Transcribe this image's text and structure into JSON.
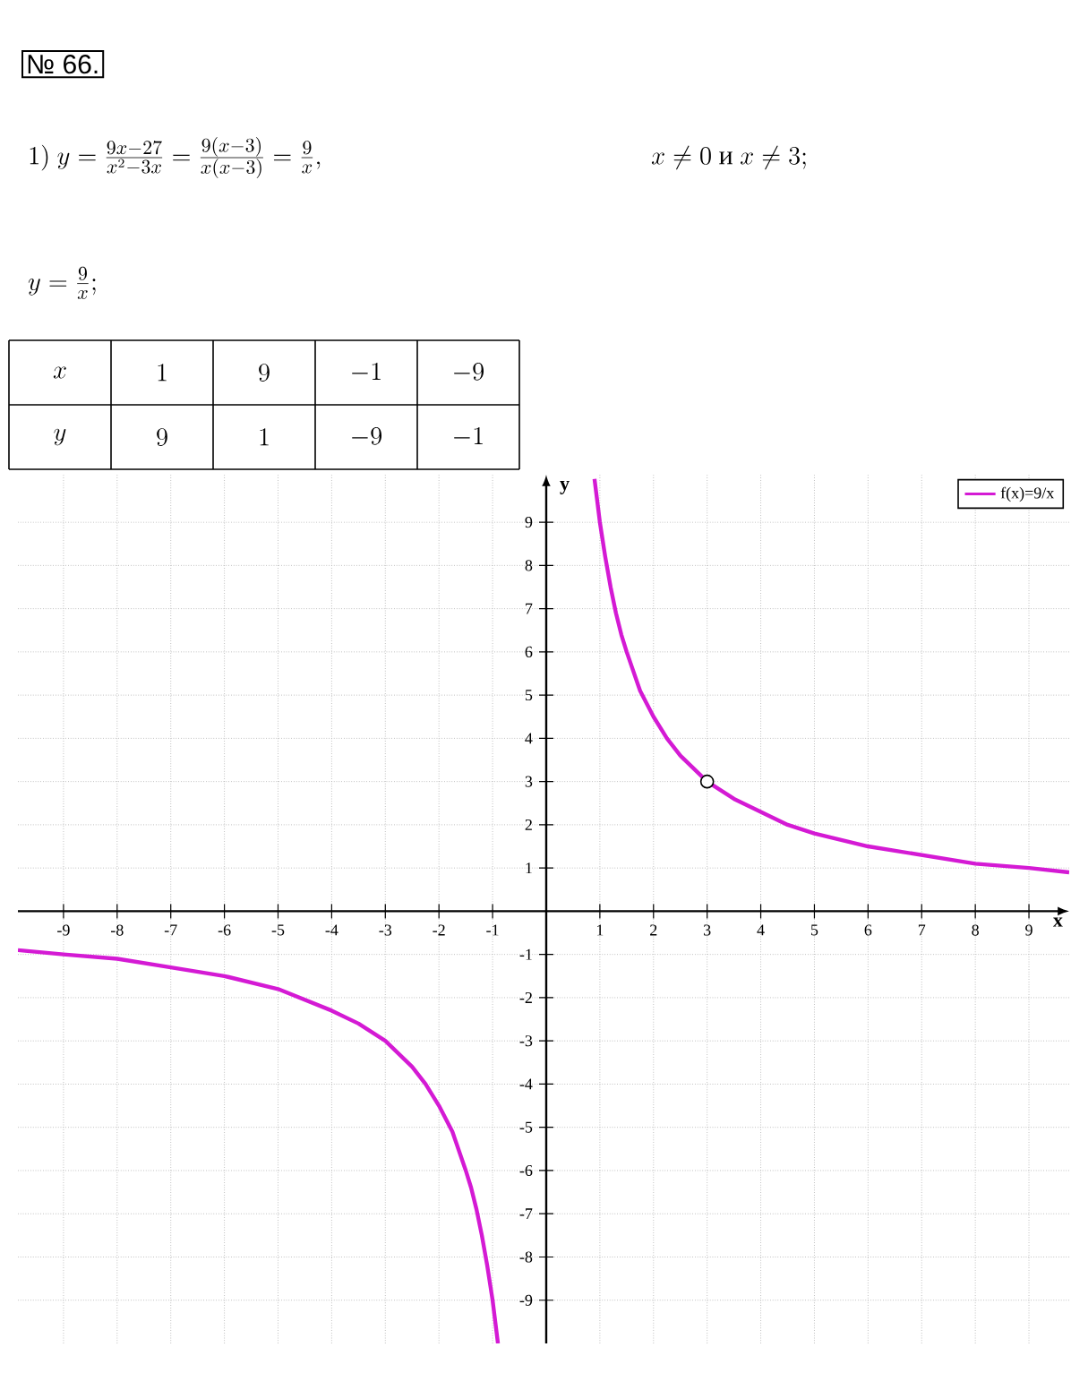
{
  "chart_data": {
    "type": "line",
    "title": "№ 66.",
    "xlabel": "x",
    "ylabel": "y",
    "annotations": [
      "1)\\ y=\\frac{9x-27}{x^2-3x}=\\frac{9(x-3)}{x(x-3)}=\\frac{9}{x},",
      "x\\neq 0\\mbox{ и }x\\neq 3;",
      "y=\\frac{9}{x};",
      "x",
      "1",
      "9",
      "-1",
      "-9",
      "y",
      "9",
      "1",
      "-9",
      "-1"
    ],
    "series": [
      {
        "name": "f(x)=9/x",
        "color": "#d41ad4",
        "x": [
          -9.85,
          -9,
          -8,
          -7,
          -6,
          -5,
          -4,
          -3.5,
          -3,
          -2.5,
          -2.25,
          -2,
          -1.75,
          -1.5,
          -1.4,
          -1.3,
          -1.2,
          -1.1,
          -1,
          -0.95,
          -0.9,
          null,
          0.9,
          0.95,
          1,
          1.1,
          1.2,
          1.3,
          1.4,
          1.5,
          1.75,
          2,
          2.25,
          2.5,
          3,
          3.5,
          4,
          4.5,
          5,
          6,
          7,
          8,
          9,
          9.75
        ],
        "values": [
          -0.9,
          -1,
          -1.1,
          -1.3,
          -1.5,
          -1.8,
          -2.3,
          -2.6,
          -3,
          -3.6,
          -4,
          -4.5,
          -5.1,
          -6,
          -6.4,
          -6.9,
          -7.5,
          -8.2,
          -9,
          -9.5,
          -10,
          null,
          10,
          9.5,
          9,
          8.2,
          7.5,
          6.9,
          6.4,
          6,
          5.1,
          4.5,
          4,
          3.6,
          3,
          2.6,
          2.3,
          2,
          1.8,
          1.5,
          1.3,
          1.1,
          1,
          0.9
        ]
      },
      {
        "type": "scatter",
        "color": "#ffffff",
        "x": [
          3
        ],
        "values": [
          3
        ]
      }
    ],
    "xlim": [
      -9.85,
      9.75
    ],
    "ylim": [
      -10,
      10.1
    ],
    "xticks": [
      -9,
      -8,
      -7,
      -6,
      -5,
      -4,
      -3,
      -2,
      -1,
      1,
      2,
      3,
      4,
      5,
      6,
      7,
      8,
      9
    ],
    "yticks": [
      -9,
      -8,
      -7,
      -6,
      -5,
      -4,
      -3,
      -2,
      -1,
      1,
      2,
      3,
      4,
      5,
      6,
      7,
      8,
      9
    ],
    "grid": true,
    "legend": "top right"
  }
}
